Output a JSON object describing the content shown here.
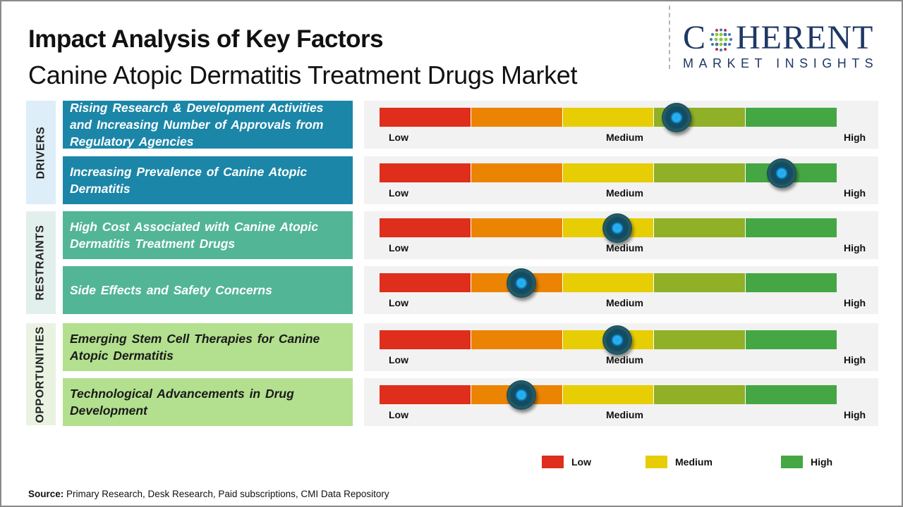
{
  "header": {
    "title": "Impact Analysis of Key Factors",
    "subtitle": "Canine Atopic Dermatitis Treatment Drugs Market"
  },
  "logo": {
    "brand_line1": "COHERENT",
    "brand_line1_pre": "C",
    "brand_line1_post": "HERENT",
    "brand_line2": "MARKET INSIGHTS",
    "globe_icon": "dotted-globe-icon"
  },
  "groups": [
    {
      "label": "DRIVERS",
      "color": "#1b86a8",
      "bg": "#ddeef9",
      "text_color": "#ffffff"
    },
    {
      "label": "RESTRAINTS",
      "color": "#52b595",
      "bg": "#e2f0ed",
      "text_color": "#ffffff"
    },
    {
      "label": "OPPORTUNITIES",
      "color": "#b3e08e",
      "bg": "#eaf3e2",
      "text_color": "#1a1a1a"
    }
  ],
  "scale": {
    "low_label": "Low",
    "medium_label": "Medium",
    "high_label": "High",
    "segment_colors": [
      "#df2e1b",
      "#ec8403",
      "#e6cd04",
      "#8fb027",
      "#45a744"
    ]
  },
  "chart_data": {
    "type": "gauge",
    "title": "Impact Analysis of Key Factors",
    "scale_range": [
      0,
      1
    ],
    "scale_labels": [
      "Low",
      "Medium",
      "High"
    ],
    "factors": [
      {
        "group": "DRIVERS",
        "label": "Rising Research & Development Activities and Increasing Number of Approvals from Regulatory Agencies",
        "impact": 0.65
      },
      {
        "group": "DRIVERS",
        "label": "Increasing Prevalence of Canine Atopic Dermatitis",
        "impact": 0.88
      },
      {
        "group": "RESTRAINTS",
        "label": "High Cost Associated with Canine Atopic Dermatitis Treatment Drugs",
        "impact": 0.52
      },
      {
        "group": "RESTRAINTS",
        "label": "Side Effects and Safety Concerns",
        "impact": 0.31
      },
      {
        "group": "OPPORTUNITIES",
        "label": "Emerging Stem Cell Therapies for Canine Atopic Dermatitis",
        "impact": 0.52
      },
      {
        "group": "OPPORTUNITIES",
        "label": "Technological Advancements in Drug Development",
        "impact": 0.31
      }
    ],
    "legend": [
      {
        "label": "Low",
        "color": "#df2e1b"
      },
      {
        "label": "Medium",
        "color": "#e6cd04"
      },
      {
        "label": "High",
        "color": "#45a744"
      }
    ]
  },
  "footer": {
    "source_label": "Source:",
    "source_text": " Primary Research, Desk Research, Paid subscriptions, CMI Data Repository"
  }
}
